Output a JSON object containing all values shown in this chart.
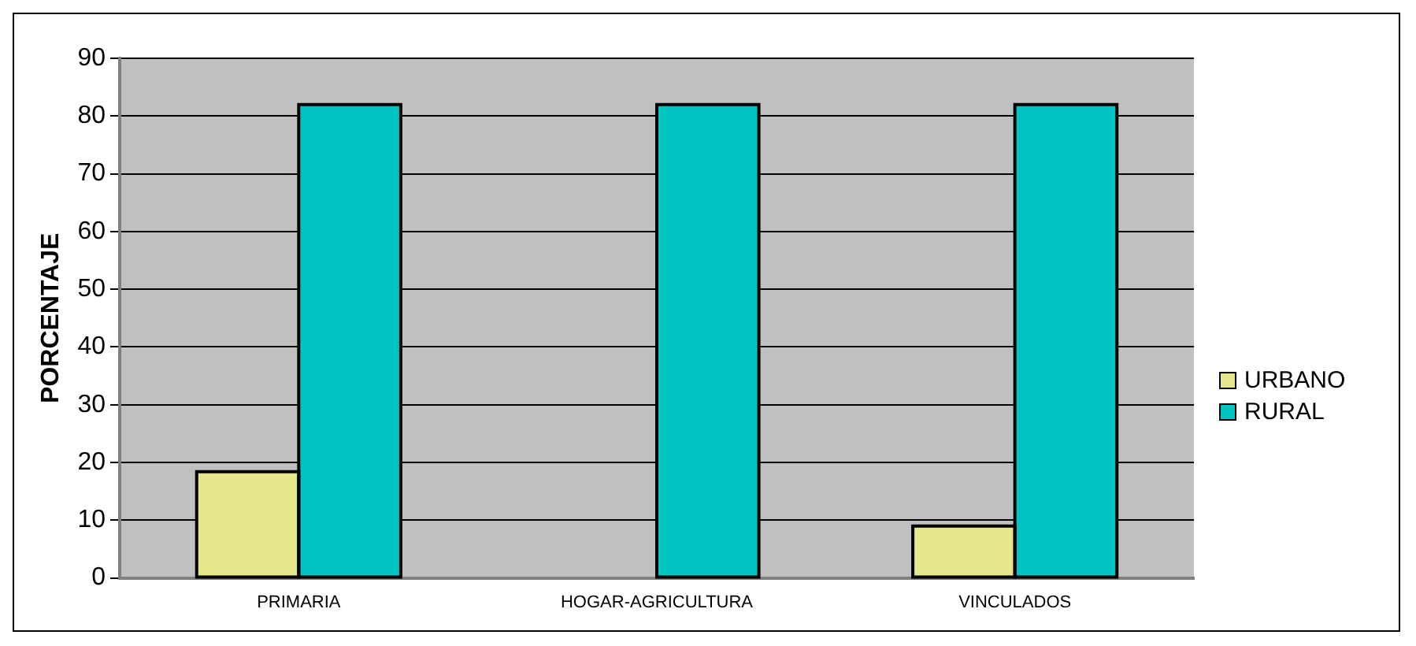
{
  "chart_data": {
    "type": "bar",
    "ylabel": "PORCENTAJE",
    "categories": [
      "PRIMARIA",
      "HOGAR-AGRICULTURA",
      "VINCULADOS"
    ],
    "series": [
      {
        "name": "URBANO",
        "color": "#e6e68c",
        "values": [
          18.4,
          0,
          9
        ]
      },
      {
        "name": "RURAL",
        "color": "#00c4c4",
        "values": [
          82,
          82,
          82
        ]
      }
    ],
    "ylim": [
      0,
      90
    ],
    "yticks": [
      0,
      10,
      20,
      30,
      40,
      50,
      60,
      70,
      80,
      90
    ],
    "grid": "y",
    "legend": "right"
  }
}
